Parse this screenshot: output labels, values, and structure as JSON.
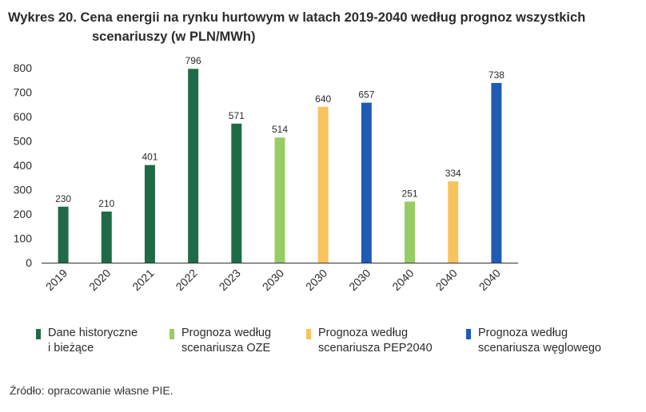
{
  "title_line1": "Wykres 20. Cena energii na rynku hurtowym w latach 2019-2040 według prognoz wszystkich",
  "title_line2": "scenariuszy (w PLN/MWh)",
  "source": "Źródło: opracowanie własne PIE.",
  "chart_data": {
    "type": "bar",
    "title": "Cena energii na rynku hurtowym w latach 2019-2040 według prognoz wszystkich scenariuszy (w PLN/MWh)",
    "ylim": [
      0,
      800
    ],
    "yticks": [
      0,
      100,
      200,
      300,
      400,
      500,
      600,
      700,
      800
    ],
    "categories": [
      "2019",
      "2020",
      "2021",
      "2022",
      "2023",
      "2030",
      "2030",
      "2030",
      "2040",
      "2040",
      "2040"
    ],
    "values": [
      230,
      210,
      401,
      796,
      571,
      514,
      640,
      657,
      251,
      334,
      738
    ],
    "series_index": [
      0,
      0,
      0,
      0,
      0,
      1,
      2,
      3,
      1,
      2,
      3
    ],
    "series": [
      {
        "name": "Dane historyczne\ni bieżące",
        "color": "#1f6b47"
      },
      {
        "name": "Prognoza według\nscenariusza OZE",
        "color": "#97cc64"
      },
      {
        "name": "Prognoza według\nscenariusza PEP2040",
        "color": "#f8c35e"
      },
      {
        "name": "Prognoza według\nscenariusza węglowego",
        "color": "#1f5bb5"
      }
    ]
  }
}
